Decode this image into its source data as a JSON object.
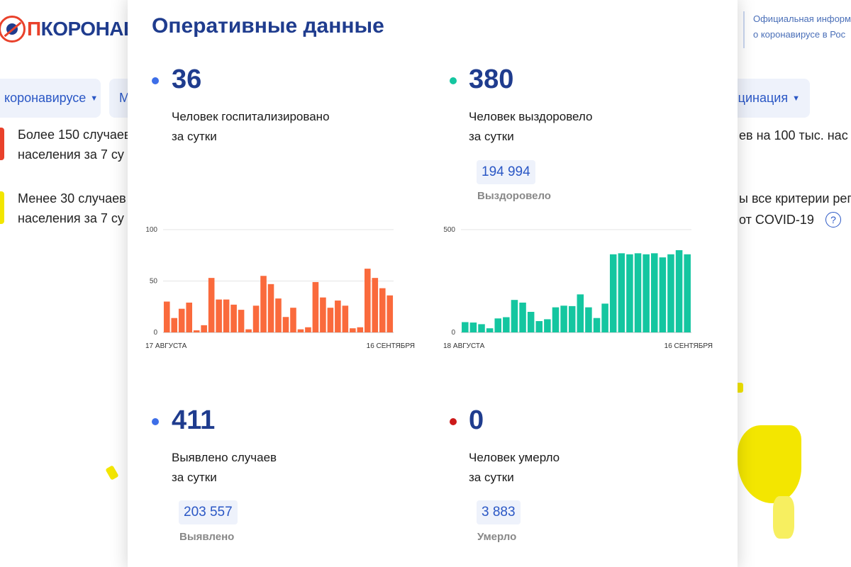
{
  "header": {
    "logo_prefix": "П",
    "logo_text": "КОРОНАВИ",
    "official_line1": "Официальная информ",
    "official_line2": "о коронавирусе в Рос"
  },
  "nav": {
    "item1": "коронавирусе",
    "item2": "М",
    "item3": "цинация"
  },
  "legend": {
    "row1_line1": "Более 150 случаев",
    "row1_line2": "населения за 7 су",
    "row2_line1": "Менее 30 случаев",
    "row2_line2": "населения за 7 су"
  },
  "right_panel": {
    "line1": "ев на 100 тыс. нас",
    "line2": "ы все критерии реги",
    "line3": "от COVID-19",
    "help": "?"
  },
  "colors": {
    "brand_blue": "#1f3c8e",
    "hospitalized": "#3d6ee8",
    "recovered": "#14c6a0",
    "cases": "#3d6ee8",
    "deaths": "#cc1a1a",
    "bar_orange": "#fa6a3c",
    "bar_green": "#14c6a0"
  },
  "modal": {
    "title": "Оперативные данные",
    "hospitalized": {
      "value": "36",
      "desc_line1": "Человек госпитализировано",
      "desc_line2": "за сутки"
    },
    "recovered": {
      "value": "380",
      "desc_line1": "Человек выздоровело",
      "desc_line2": "за сутки",
      "total": "194 994",
      "total_label": "Выздоровело"
    },
    "cases": {
      "value": "411",
      "desc_line1": "Выявлено случаев",
      "desc_line2": "за сутки",
      "total": "203 557",
      "total_label": "Выявлено"
    },
    "deaths": {
      "value": "0",
      "desc_line1": "Человек умерло",
      "desc_line2": "за сутки",
      "total": "3 883",
      "total_label": "Умерло"
    }
  },
  "chart_data": [
    {
      "type": "bar",
      "ylim": [
        0,
        100
      ],
      "yticks": [
        "0",
        "50",
        "100"
      ],
      "x_start_label": "17 АВГУСТА",
      "x_end_label": "16 СЕНТЯБРЯ",
      "color": "#fa6a3c",
      "values": [
        30,
        14,
        23,
        29,
        2,
        7,
        53,
        32,
        32,
        27,
        22,
        3,
        26,
        55,
        47,
        33,
        15,
        24,
        3,
        5,
        49,
        34,
        24,
        31,
        26,
        4,
        5,
        62,
        53,
        43,
        36
      ]
    },
    {
      "type": "bar",
      "ylim": [
        0,
        500
      ],
      "yticks": [
        "0",
        "500"
      ],
      "x_start_label": "18 АВГУСТА",
      "x_end_label": "16 СЕНТЯБРЯ",
      "color": "#14c6a0",
      "values": [
        50,
        48,
        40,
        20,
        68,
        74,
        158,
        145,
        100,
        55,
        64,
        122,
        130,
        128,
        185,
        122,
        70,
        140,
        380,
        385,
        380,
        385,
        380,
        385,
        365,
        380,
        400,
        380
      ]
    }
  ]
}
